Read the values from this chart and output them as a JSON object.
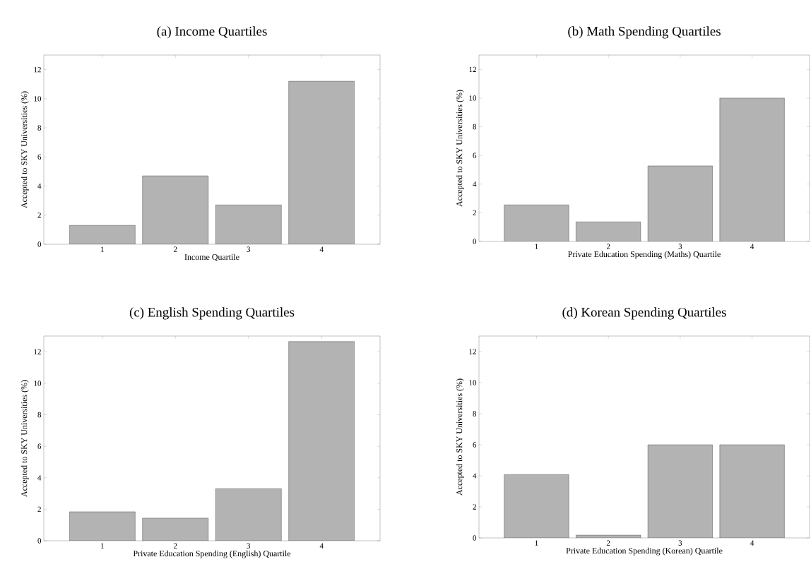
{
  "chart_data": [
    {
      "type": "bar",
      "title": "(a) Income Quartiles",
      "xlabel": "Income Quartile",
      "ylabel": "Accepted to SKY Universities (%)",
      "categories": [
        "1",
        "2",
        "3",
        "4"
      ],
      "values": [
        1.3,
        4.7,
        2.7,
        11.2
      ],
      "color": "#b3b3b3",
      "ylim": [
        0,
        13
      ],
      "yticks": [
        0,
        2,
        4,
        6,
        8,
        10,
        12
      ]
    },
    {
      "type": "bar",
      "title": "(b) Math Spending Quartiles",
      "xlabel": "Private Education Spending (Maths) Quartile",
      "ylabel": "Accepted to SKY Universities (%)",
      "categories": [
        "1",
        "2",
        "3",
        "4"
      ],
      "values": [
        2.55,
        1.36,
        5.27,
        10.0
      ],
      "color": "#b3b3b3",
      "ylim": [
        0,
        13
      ],
      "yticks": [
        0,
        2,
        4,
        6,
        8,
        10,
        12
      ]
    },
    {
      "type": "bar",
      "title": "(c) English Spending Quartiles",
      "xlabel": "Private Education Spending (English) Quartile",
      "ylabel": "Accepted to SKY Universities (%)",
      "categories": [
        "1",
        "2",
        "3",
        "4"
      ],
      "values": [
        1.84,
        1.44,
        3.31,
        12.65
      ],
      "color": "#b3b3b3",
      "ylim": [
        0,
        13
      ],
      "yticks": [
        0,
        2,
        4,
        6,
        8,
        10,
        12
      ]
    },
    {
      "type": "bar",
      "title": "(d) Korean Spending Quartiles",
      "xlabel": "Private Education Spending (Korean) Quartile",
      "ylabel": "Accepted to SKY Universities (%)",
      "categories": [
        "1",
        "2",
        "3",
        "4"
      ],
      "values": [
        4.08,
        0.18,
        6.0,
        6.0
      ],
      "color": "#b3b3b3",
      "ylim": [
        0,
        13
      ],
      "yticks": [
        0,
        2,
        4,
        6,
        8,
        10,
        12
      ]
    }
  ]
}
